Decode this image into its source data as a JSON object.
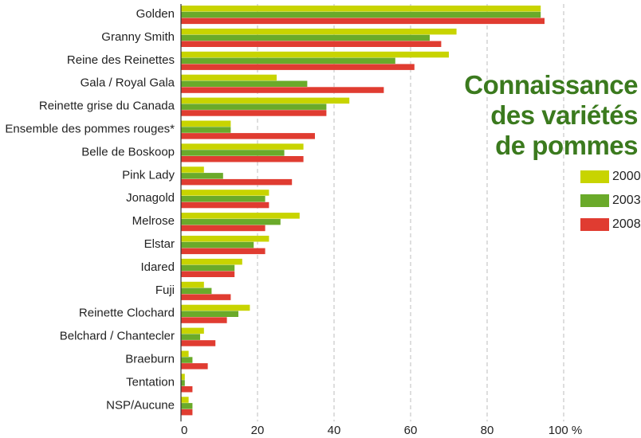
{
  "chart_data": {
    "type": "bar",
    "orientation": "horizontal",
    "title": [
      "Connaissance",
      "des variétés",
      "de pommes"
    ],
    "xlim": [
      0,
      100
    ],
    "xticks": [
      "0",
      "20",
      "40",
      "60",
      "80",
      "100 %"
    ],
    "grid": "vertical dashed",
    "legend_position": "right",
    "categories": [
      "Golden",
      "Granny Smith",
      "Reine des Reinettes",
      "Gala / Royal Gala",
      "Reinette grise du Canada",
      "Ensemble des pommes rouges*",
      "Belle de Boskoop",
      "Pink Lady",
      "Jonagold",
      "Melrose",
      "Elstar",
      "Idared",
      "Fuji",
      "Reinette Clochard",
      "Belchard / Chantecler",
      "Braeburn",
      "Tentation",
      "NSP/Aucune"
    ],
    "series": [
      {
        "name": "2000",
        "color": "#c8d400",
        "values": [
          94,
          72,
          70,
          25,
          44,
          13,
          32,
          6,
          23,
          31,
          23,
          16,
          6,
          18,
          6,
          2,
          1,
          2
        ]
      },
      {
        "name": "2003",
        "color": "#6aaa2a",
        "values": [
          94,
          65,
          56,
          33,
          38,
          13,
          27,
          11,
          22,
          26,
          19,
          14,
          8,
          15,
          5,
          3,
          1,
          3
        ]
      },
      {
        "name": "2008",
        "color": "#e03c31",
        "values": [
          95,
          68,
          61,
          53,
          38,
          35,
          32,
          29,
          23,
          22,
          22,
          14,
          13,
          12,
          9,
          7,
          3,
          3
        ]
      }
    ]
  }
}
